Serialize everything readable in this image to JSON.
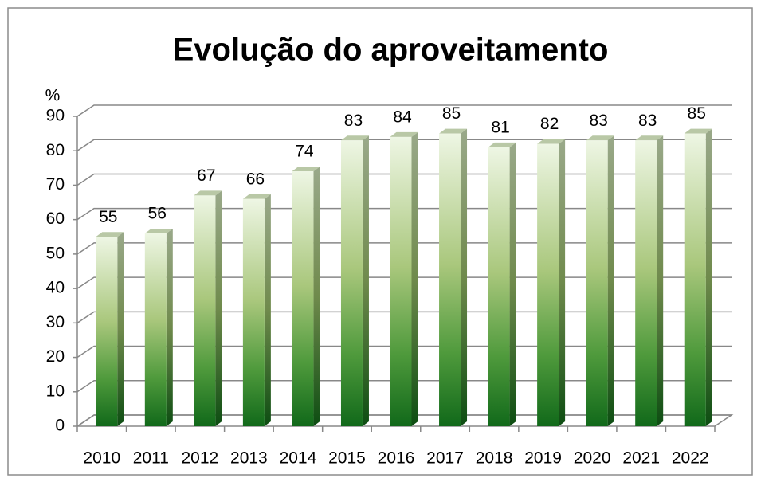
{
  "chart_data": {
    "type": "bar",
    "title": "Evolução do aproveitamento",
    "y_label": "%",
    "categories": [
      "2010",
      "2011",
      "2012",
      "2013",
      "2014",
      "2015",
      "2016",
      "2017",
      "2018",
      "2019",
      "2020",
      "2021",
      "2022"
    ],
    "values": [
      55,
      56,
      67,
      66,
      74,
      83,
      84,
      85,
      81,
      82,
      83,
      83,
      85
    ],
    "color": "#1e7a1e",
    "ylim": [
      0,
      90
    ],
    "yticks": [
      0,
      10,
      20,
      30,
      40,
      50,
      60,
      70,
      80,
      90
    ],
    "grid": true
  }
}
